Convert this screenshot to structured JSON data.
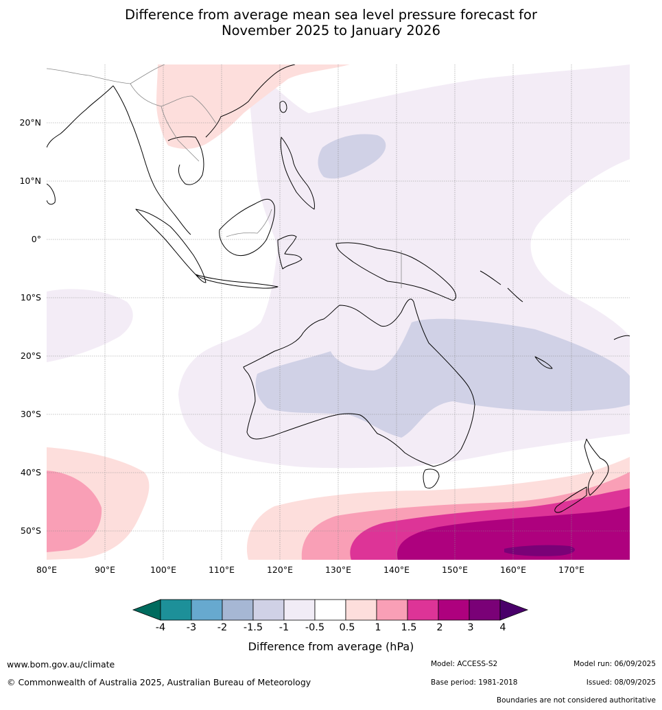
{
  "title": {
    "line1": "Difference from average mean sea level pressure forecast for",
    "line2": "November 2025 to January 2026"
  },
  "map": {
    "lat_labels": [
      "20°N",
      "10°N",
      "0°",
      "10°S",
      "20°S",
      "30°S",
      "40°S",
      "50°S"
    ],
    "lon_labels": [
      "80°E",
      "90°E",
      "100°E",
      "110°E",
      "120°E",
      "130°E",
      "140°E",
      "150°E",
      "160°E",
      "170°E"
    ],
    "extent": {
      "lon": [
        80,
        180
      ],
      "lat": [
        -55,
        30
      ]
    }
  },
  "colorbar": {
    "ticks": [
      "-4",
      "-3",
      "-2",
      "-1.5",
      "-1",
      "-0.5",
      "0.5",
      "1",
      "1.5",
      "2",
      "3",
      "4"
    ],
    "colors": [
      "#006b5e",
      "#1d9099",
      "#67a9cf",
      "#a6b7d4",
      "#d0d1e6",
      "#f1ecf6",
      "#ffffff",
      "#fddedc",
      "#f99fb6",
      "#dd3497",
      "#ae017e",
      "#7a0177",
      "#49006a"
    ],
    "label": "Difference from average (hPa)"
  },
  "footer": {
    "website": "www.bom.gov.au/climate",
    "copyright": "© Commonwealth of Australia 2025, Australian Bureau of Meteorology",
    "model": "Model: ACCESS-S2",
    "model_run": "Model run: 06/09/2025",
    "base_period": "Base period: 1981-2018",
    "issued": "Issued: 08/09/2025",
    "disclaimer": "Boundaries are not considered authoritative"
  }
}
